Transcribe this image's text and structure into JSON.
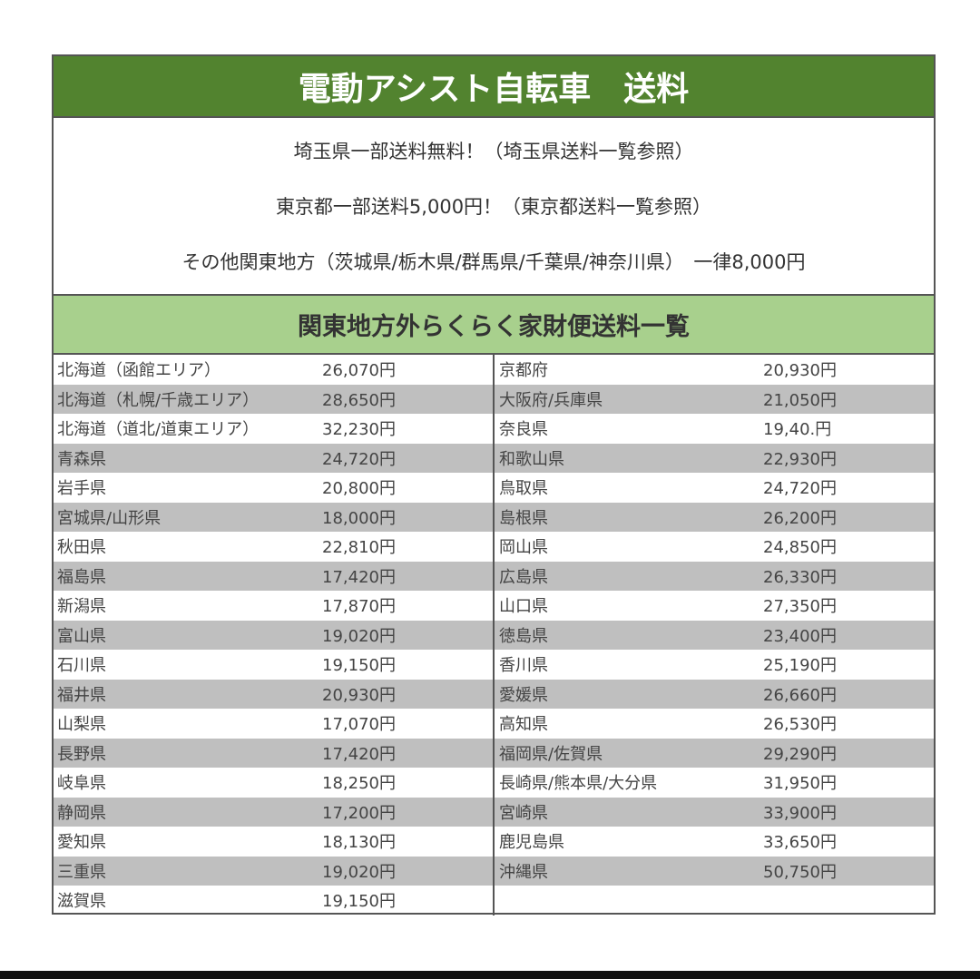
{
  "title": "電動アシスト自転車　送料",
  "info": [
    "埼玉県一部送料無料！（埼玉県送料一覧参照）",
    "東京都一部送料5,000円！（東京都送料一覧参照）",
    "その他関東地方（茨城県/栃木県/群馬県/千葉県/神奈川県）　一律8,000円"
  ],
  "subtitle": "関東地方外らくらく家財便送料一覧",
  "left_rows": [
    {
      "name": "北海道（函館エリア）",
      "price": "26,070円"
    },
    {
      "name": "北海道（札幌/千歳エリア）",
      "price": "28,650円"
    },
    {
      "name": "北海道（道北/道東エリア）",
      "price": "32,230円"
    },
    {
      "name": "青森県",
      "price": "24,720円"
    },
    {
      "name": "岩手県",
      "price": "20,800円"
    },
    {
      "name": "宮城県/山形県",
      "price": "18,000円"
    },
    {
      "name": "秋田県",
      "price": "22,810円"
    },
    {
      "name": "福島県",
      "price": "17,420円"
    },
    {
      "name": "新潟県",
      "price": "17,870円"
    },
    {
      "name": "富山県",
      "price": "19,020円"
    },
    {
      "name": "石川県",
      "price": "19,150円"
    },
    {
      "name": "福井県",
      "price": "20,930円"
    },
    {
      "name": "山梨県",
      "price": "17,070円"
    },
    {
      "name": "長野県",
      "price": "17,420円"
    },
    {
      "name": "岐阜県",
      "price": "18,250円"
    },
    {
      "name": "静岡県",
      "price": "17,200円"
    },
    {
      "name": "愛知県",
      "price": "18,130円"
    },
    {
      "name": "三重県",
      "price": "19,020円"
    },
    {
      "name": "滋賀県",
      "price": "19,150円"
    }
  ],
  "right_rows": [
    {
      "name": "京都府",
      "price": "20,930円"
    },
    {
      "name": "大阪府/兵庫県",
      "price": "21,050円"
    },
    {
      "name": "奈良県",
      "price": "19,40.円"
    },
    {
      "name": "和歌山県",
      "price": "22,930円"
    },
    {
      "name": "鳥取県",
      "price": "24,720円"
    },
    {
      "name": "島根県",
      "price": "26,200円"
    },
    {
      "name": "岡山県",
      "price": "24,850円"
    },
    {
      "name": "広島県",
      "price": "26,330円"
    },
    {
      "name": "山口県",
      "price": "27,350円"
    },
    {
      "name": "徳島県",
      "price": "23,400円"
    },
    {
      "name": "香川県",
      "price": "25,190円"
    },
    {
      "name": "愛媛県",
      "price": "26,660円"
    },
    {
      "name": "高知県",
      "price": "26,530円"
    },
    {
      "name": "福岡県/佐賀県",
      "price": "29,290円"
    },
    {
      "name": "長崎県/熊本県/大分県",
      "price": "31,950円"
    },
    {
      "name": "宮崎県",
      "price": "33,900円"
    },
    {
      "name": "鹿児島県",
      "price": "33,650円"
    },
    {
      "name": "沖縄県",
      "price": "50,750円"
    }
  ],
  "colors": {
    "header": "#52832f",
    "subheader": "#a8d08d",
    "stripe": "#bfbfbf"
  }
}
